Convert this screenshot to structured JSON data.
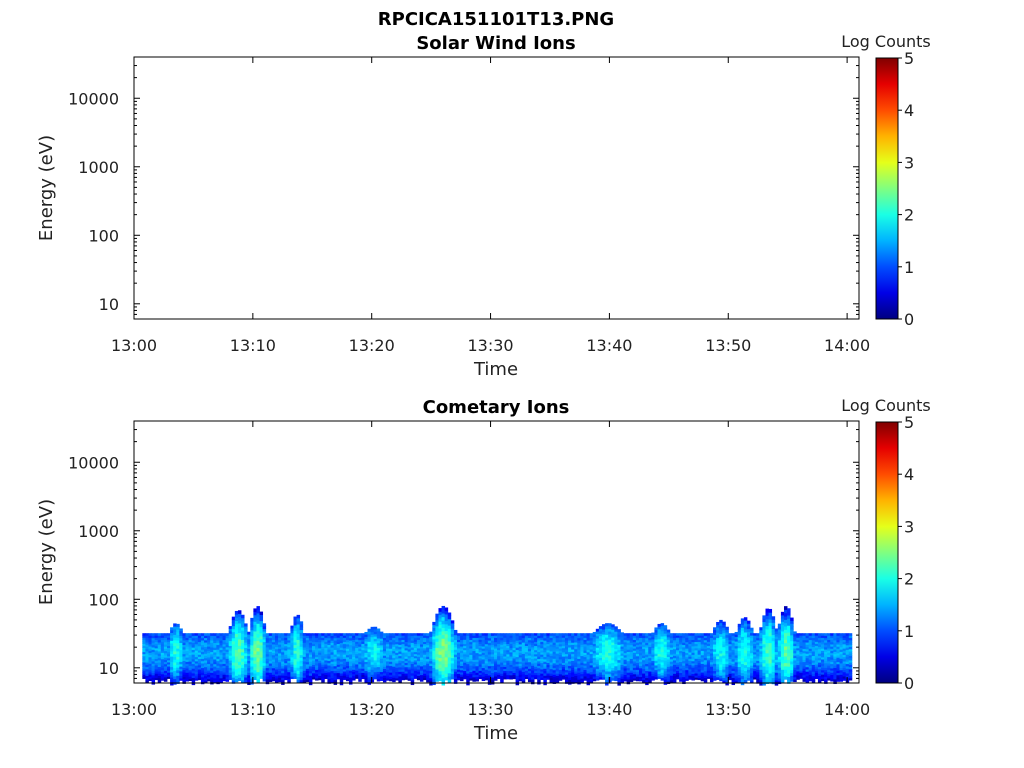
{
  "figure_title": "RPCICA151101T13.PNG",
  "chart_data": [
    {
      "type": "heatmap",
      "title": "Solar Wind Ions",
      "xlabel": "Time",
      "ylabel": "Energy (eV)",
      "x_tick_labels": [
        "13:00",
        "13:10",
        "13:20",
        "13:30",
        "13:40",
        "13:50",
        "14:00"
      ],
      "x_ticks_minutes": [
        0,
        10,
        20,
        30,
        40,
        50,
        60
      ],
      "xlim_minutes": [
        0,
        61
      ],
      "y_scale": "log",
      "ylim": [
        6,
        40000
      ],
      "y_tick_labels": [
        "10",
        "100",
        "1000",
        "10000"
      ],
      "y_ticks": [
        10,
        100,
        1000,
        10000
      ],
      "colorbar": {
        "label": "Log Counts",
        "range": [
          0,
          5
        ],
        "tick_labels": [
          "0",
          "1",
          "2",
          "3",
          "4",
          "5"
        ],
        "colormap": "jet"
      },
      "features": []
    },
    {
      "type": "heatmap",
      "title": "Cometary Ions",
      "xlabel": "Time",
      "ylabel": "Energy (eV)",
      "x_tick_labels": [
        "13:00",
        "13:10",
        "13:20",
        "13:30",
        "13:40",
        "13:50",
        "14:00"
      ],
      "x_ticks_minutes": [
        0,
        10,
        20,
        30,
        40,
        50,
        60
      ],
      "xlim_minutes": [
        0,
        61
      ],
      "y_scale": "log",
      "ylim": [
        6,
        40000
      ],
      "y_tick_labels": [
        "10",
        "100",
        "1000",
        "10000"
      ],
      "y_ticks": [
        10,
        100,
        1000,
        10000
      ],
      "colorbar": {
        "label": "Log Counts",
        "range": [
          0,
          5
        ],
        "tick_labels": [
          "0",
          "1",
          "2",
          "3",
          "4",
          "5"
        ],
        "colormap": "jet"
      },
      "data_coverage_minutes": [
        0.7,
        60.4
      ],
      "band": {
        "energy_low_ev": 7,
        "energy_high_ev": 32,
        "peak_energy_ev": 17,
        "typical_log_counts": 1.4
      },
      "features": [
        {
          "t_start": 2.8,
          "t_end": 4.0,
          "energy_top_ev": 45,
          "peak_log_counts": 2.0
        },
        {
          "t_start": 7.8,
          "t_end": 9.5,
          "energy_top_ev": 70,
          "peak_log_counts": 2.3
        },
        {
          "t_start": 9.5,
          "t_end": 11.0,
          "energy_top_ev": 80,
          "peak_log_counts": 2.4
        },
        {
          "t_start": 13.0,
          "t_end": 14.2,
          "energy_top_ev": 60,
          "peak_log_counts": 2.1
        },
        {
          "t_start": 19.3,
          "t_end": 20.8,
          "energy_top_ev": 40,
          "peak_log_counts": 1.9
        },
        {
          "t_start": 24.8,
          "t_end": 27.0,
          "energy_top_ev": 80,
          "peak_log_counts": 2.5
        },
        {
          "t_start": 38.5,
          "t_end": 41.0,
          "energy_top_ev": 45,
          "peak_log_counts": 2.0
        },
        {
          "t_start": 43.5,
          "t_end": 45.0,
          "energy_top_ev": 45,
          "peak_log_counts": 2.0
        },
        {
          "t_start": 48.5,
          "t_end": 50.0,
          "energy_top_ev": 50,
          "peak_log_counts": 1.9
        },
        {
          "t_start": 50.5,
          "t_end": 52.0,
          "energy_top_ev": 55,
          "peak_log_counts": 2.0
        },
        {
          "t_start": 52.5,
          "t_end": 54.0,
          "energy_top_ev": 75,
          "peak_log_counts": 2.2
        },
        {
          "t_start": 54.0,
          "t_end": 55.5,
          "energy_top_ev": 80,
          "peak_log_counts": 2.3
        }
      ]
    }
  ]
}
